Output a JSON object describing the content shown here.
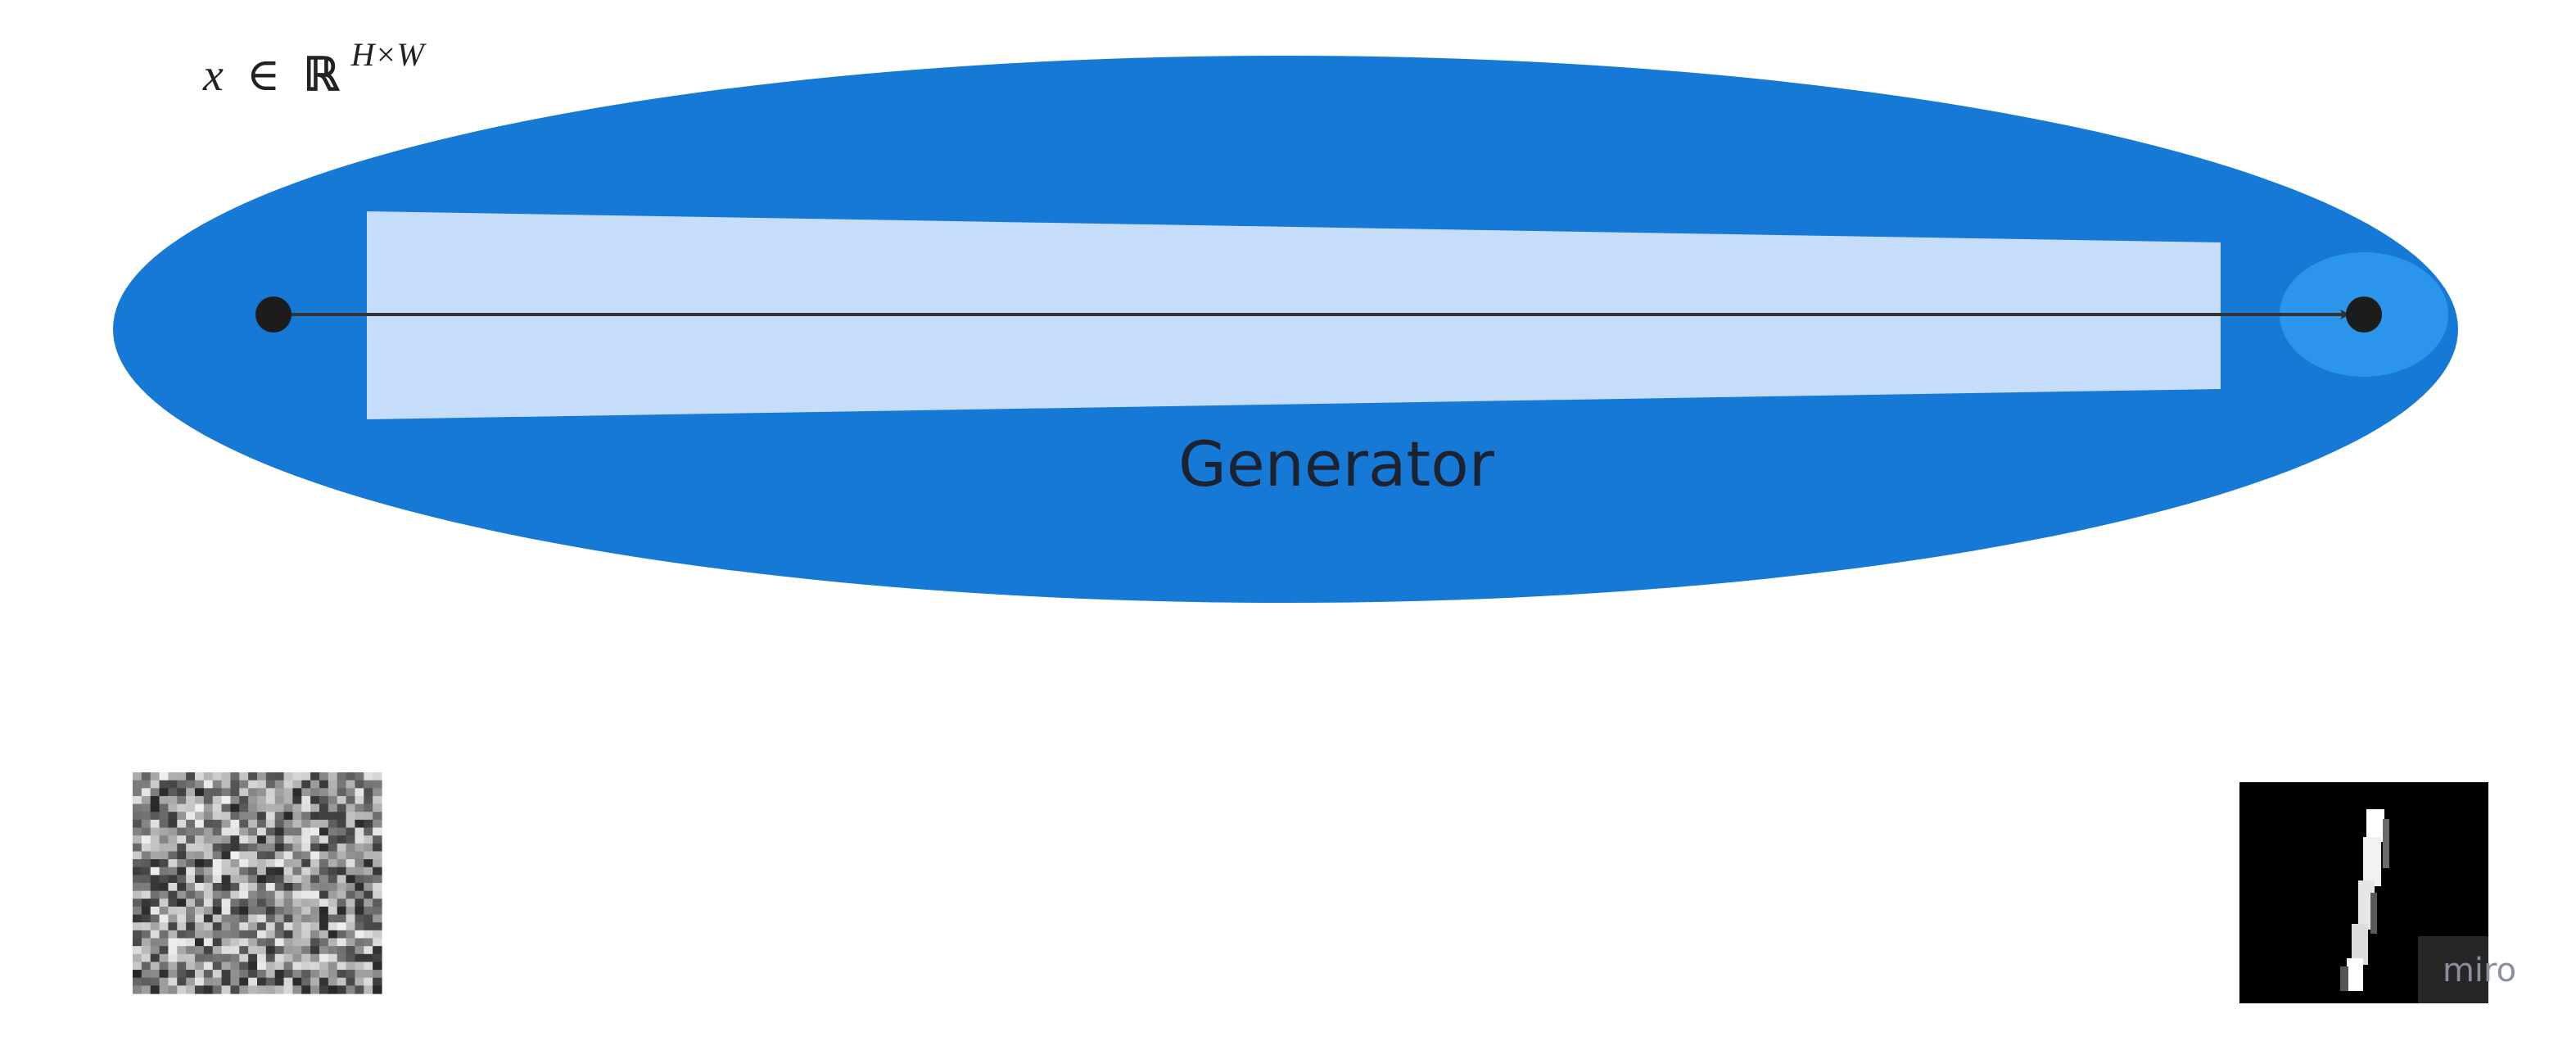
{
  "diagram": {
    "space_label": {
      "var": "x",
      "in": "∈",
      "set": "ℝ",
      "exponent": "H×W"
    },
    "model_label": "Generator",
    "watermark": "miro",
    "colors": {
      "outer_ellipse": "#1579D5",
      "inner_band": "#C5DCFA",
      "target_ellipse": "#2B95EC",
      "arrow": "#333333",
      "point": "#1c1c1c",
      "label_text": "#1d2230"
    }
  }
}
